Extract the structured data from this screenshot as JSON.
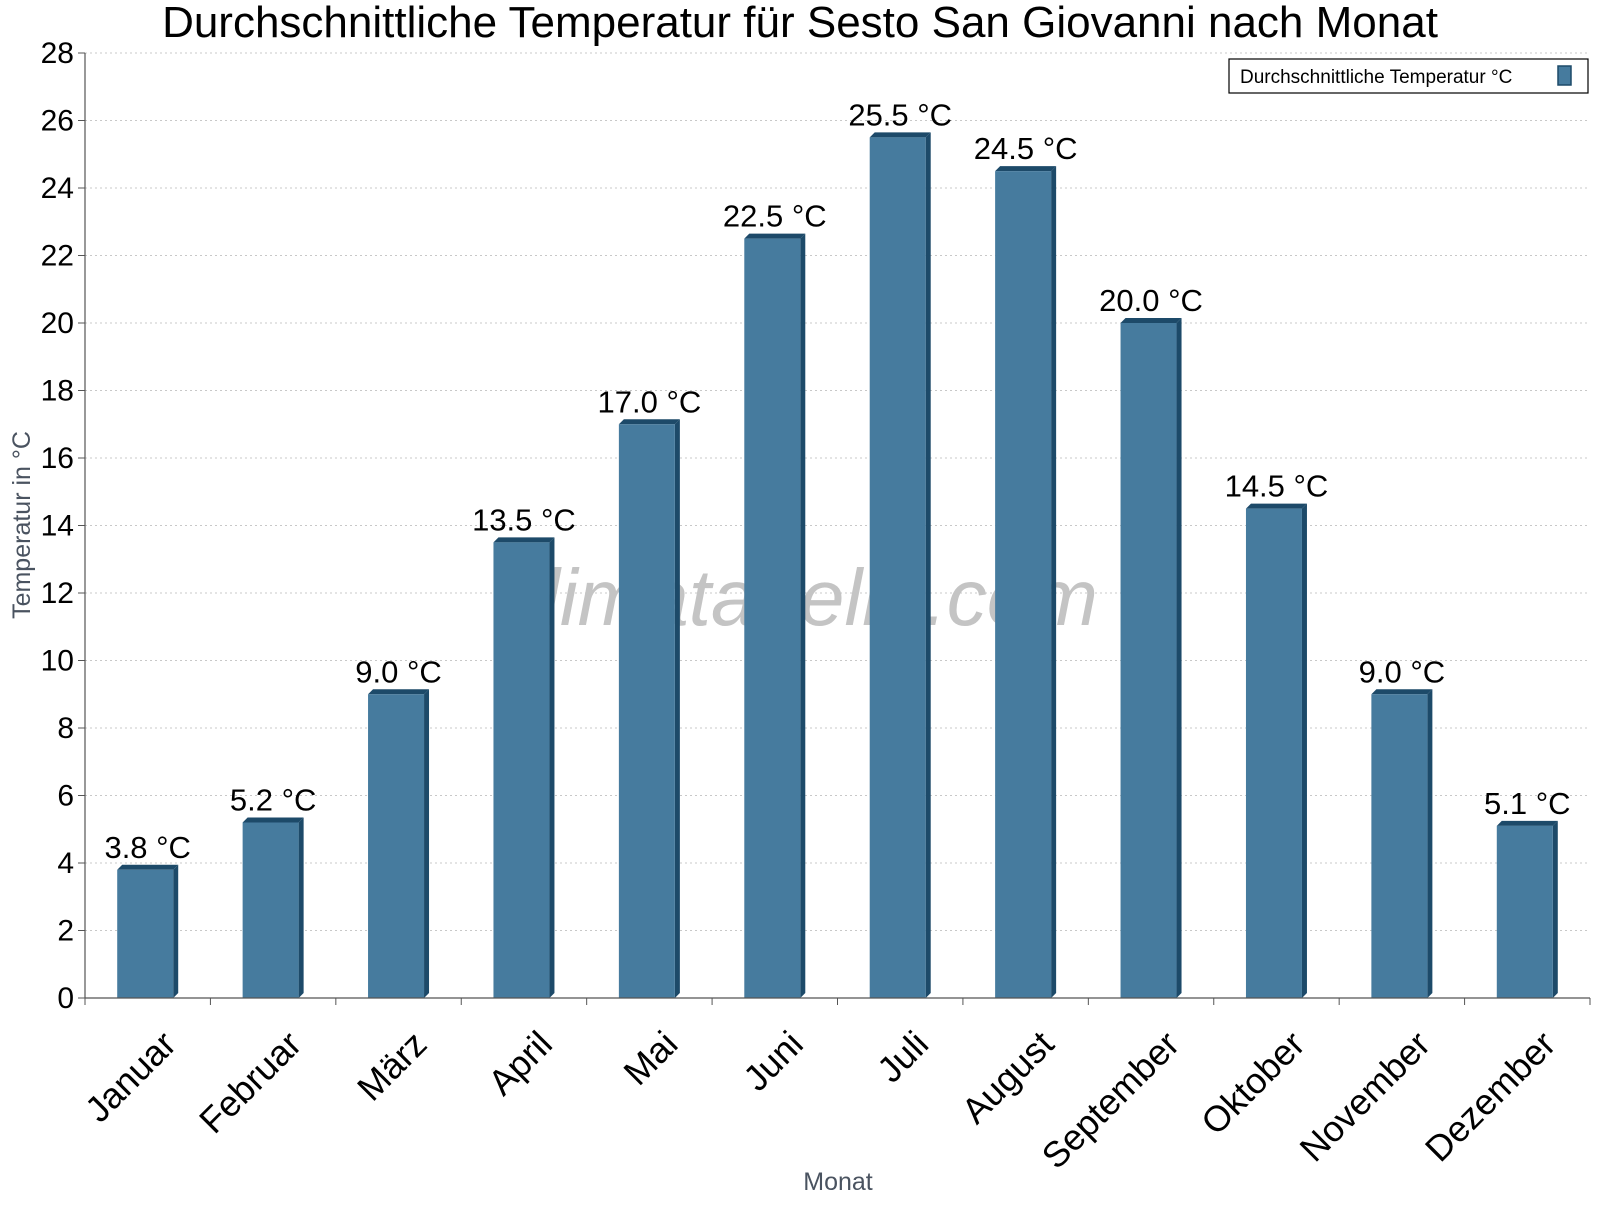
{
  "chart_data": {
    "type": "bar",
    "title": "Durchschnittliche Temperatur für Sesto San Giovanni nach Monat",
    "xlabel": "Monat",
    "ylabel": "Temperatur in °C",
    "categories": [
      "Januar",
      "Februar",
      "März",
      "April",
      "Mai",
      "Juni",
      "Juli",
      "August",
      "September",
      "Oktober",
      "November",
      "Dezember"
    ],
    "series": [
      {
        "name": "Durchschnittliche Temperatur °C",
        "values": [
          3.8,
          5.2,
          9.0,
          13.5,
          17.0,
          22.5,
          25.5,
          24.5,
          20.0,
          14.5,
          9.0,
          5.1
        ],
        "labels": [
          "3.8 °C",
          "5.2 °C",
          "9.0 °C",
          "13.5 °C",
          "17.0 °C",
          "22.5 °C",
          "25.5 °C",
          "24.5 °C",
          "20.0 °C",
          "14.5 °C",
          "9.0 °C",
          "5.1 °C"
        ]
      }
    ],
    "ylim": [
      0,
      28
    ],
    "yticks": [
      "0",
      "2",
      "4",
      "6",
      "8",
      "10",
      "12",
      "14",
      "16",
      "18",
      "20",
      "22",
      "24",
      "26",
      "28"
    ],
    "grid": true,
    "legend_position": "top-right",
    "colors": {
      "bar": "#467b9e",
      "bar_side": "#1d4a69",
      "grid": "#c8c8c8",
      "axis": "#555555",
      "text": "#000000",
      "axis_title": "#4a5360",
      "watermark": "#c4c4c4"
    }
  },
  "watermark": "klimatabelle.com"
}
